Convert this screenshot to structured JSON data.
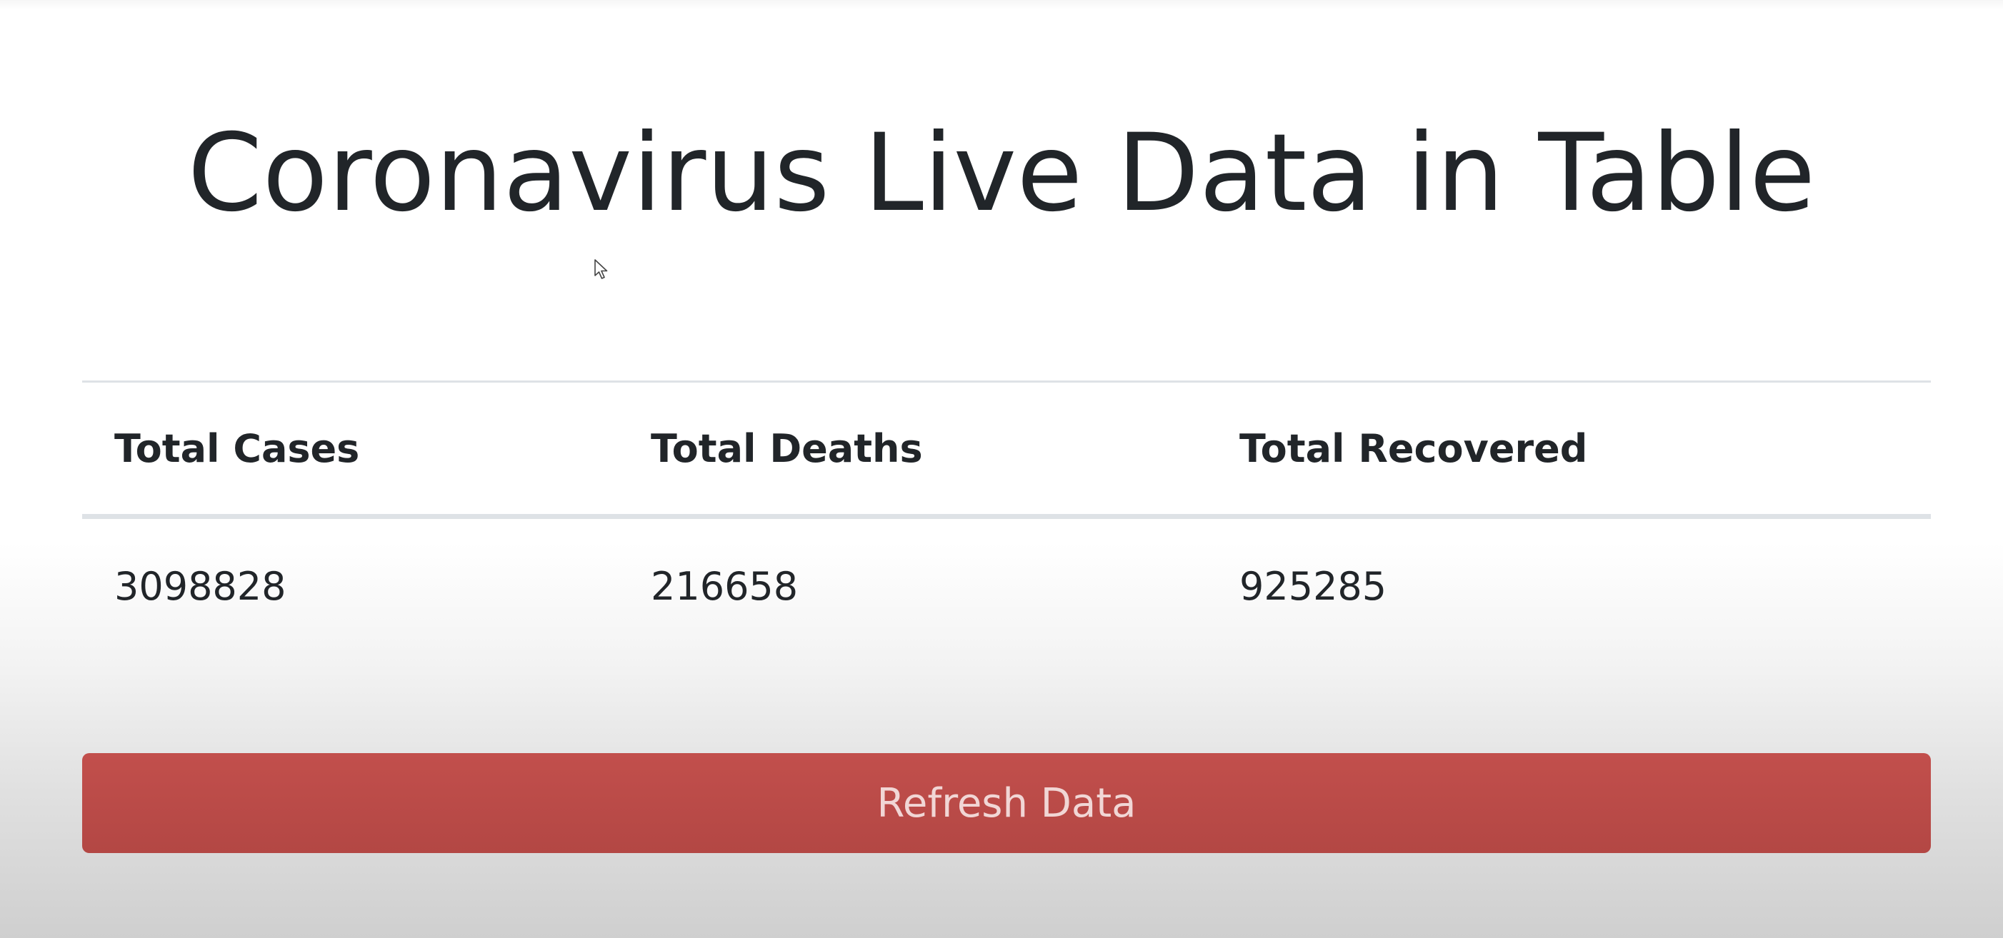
{
  "page": {
    "title": "Coronavirus Live Data in Table"
  },
  "table": {
    "headers": [
      "Total Cases",
      "Total Deaths",
      "Total Recovered"
    ],
    "rows": [
      [
        "3098828",
        "216658",
        "925285"
      ]
    ]
  },
  "refresh_button": {
    "label": "Refresh Data",
    "color": "#bb4b48"
  },
  "cursor": {
    "icon": "mouse-pointer-icon"
  }
}
